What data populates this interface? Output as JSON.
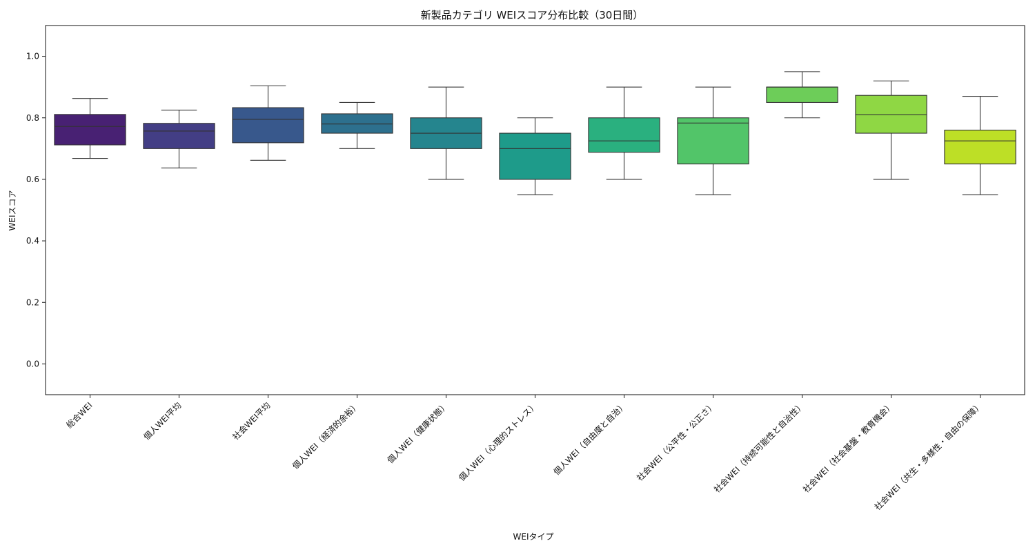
{
  "chart_data": {
    "type": "box",
    "title": "新製品カテゴリ WEIスコア分布比較（30日間）",
    "xlabel": "WEIタイプ",
    "ylabel": "WEIスコア",
    "ylim": [
      -0.1,
      1.1
    ],
    "yticks": [
      0.0,
      0.2,
      0.4,
      0.6,
      0.8,
      1.0
    ],
    "ytick_labels": [
      "0.0",
      "0.2",
      "0.4",
      "0.6",
      "0.8",
      "1.0"
    ],
    "grid": false,
    "categories": [
      "総合WEI",
      "個人WEI平均",
      "社会WEI平均",
      "個人WEI（経済的余裕）",
      "個人WEI（健康状態）",
      "個人WEI（心理的ストレス）",
      "個人WEI（自由度と自治）",
      "社会WEI（公平性・公正さ）",
      "社会WEI（持続可能性と自治性）",
      "社会WEI（社会基盤・教育機会）",
      "社会WEI（共生・多様性・自由の保障）"
    ],
    "boxes": [
      {
        "min": 0.668,
        "q1": 0.712,
        "median": 0.772,
        "q3": 0.811,
        "max": 0.863,
        "color": "#482173"
      },
      {
        "min": 0.637,
        "q1": 0.7,
        "median": 0.757,
        "q3": 0.782,
        "max": 0.825,
        "color": "#433e85"
      },
      {
        "min": 0.662,
        "q1": 0.719,
        "median": 0.795,
        "q3": 0.833,
        "max": 0.904,
        "color": "#38588c"
      },
      {
        "min": 0.7,
        "q1": 0.75,
        "median": 0.78,
        "q3": 0.813,
        "max": 0.85,
        "color": "#2d708e"
      },
      {
        "min": 0.6,
        "q1": 0.7,
        "median": 0.75,
        "q3": 0.8,
        "max": 0.9,
        "color": "#25858e"
      },
      {
        "min": 0.55,
        "q1": 0.6,
        "median": 0.7,
        "q3": 0.75,
        "max": 0.8,
        "color": "#1e9b8a"
      },
      {
        "min": 0.6,
        "q1": 0.688,
        "median": 0.725,
        "q3": 0.8,
        "max": 0.9,
        "color": "#2ab07f"
      },
      {
        "min": 0.55,
        "q1": 0.65,
        "median": 0.783,
        "q3": 0.8,
        "max": 0.9,
        "color": "#52c569"
      },
      {
        "min": 0.8,
        "q1": 0.85,
        "median": 0.9,
        "q3": 0.9,
        "max": 0.95,
        "color": "#6dcd59"
      },
      {
        "min": 0.6,
        "q1": 0.75,
        "median": 0.81,
        "q3": 0.873,
        "max": 0.92,
        "color": "#8fd744"
      },
      {
        "min": 0.55,
        "q1": 0.65,
        "median": 0.725,
        "q3": 0.76,
        "max": 0.87,
        "color": "#bddf26"
      }
    ]
  }
}
